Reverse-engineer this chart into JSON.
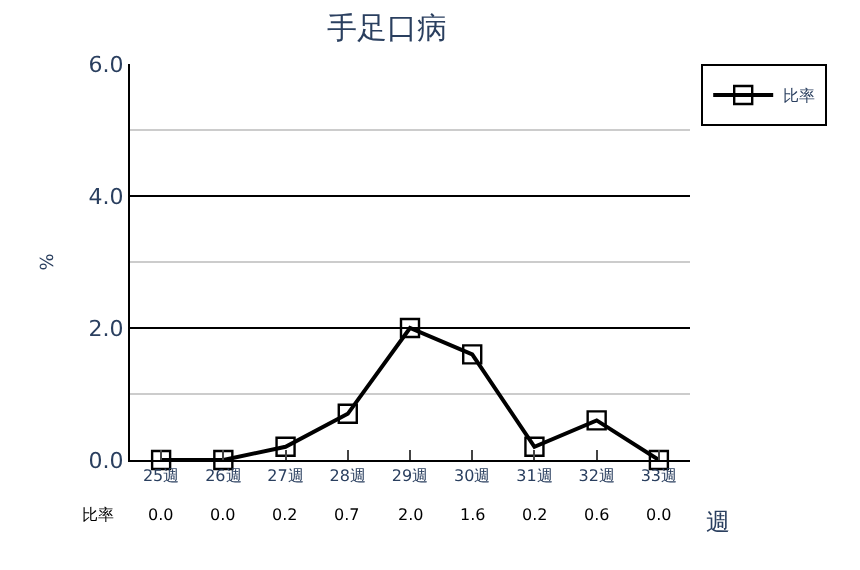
{
  "chart_data": {
    "type": "line",
    "title": "手足口病",
    "xlabel": "週",
    "ylabel": "%",
    "categories": [
      "25週",
      "26週",
      "27週",
      "28週",
      "29週",
      "30週",
      "31週",
      "32週",
      "33週"
    ],
    "series": [
      {
        "name": "比率",
        "color": "#000000",
        "values": [
          0.0,
          0.0,
          0.2,
          0.7,
          2.0,
          1.6,
          0.2,
          0.6,
          0.0
        ],
        "value_labels": [
          "0.0",
          "0.0",
          "0.2",
          "0.7",
          "2.0",
          "1.6",
          "0.2",
          "0.6",
          "0.0"
        ]
      }
    ],
    "ylim": [
      0,
      6
    ],
    "yticks": [
      {
        "value": 0,
        "label": "0.0"
      },
      {
        "value": 2,
        "label": "2.0"
      },
      {
        "value": 4,
        "label": "4.0"
      },
      {
        "value": 6,
        "label": "6.0"
      }
    ],
    "grid": "y",
    "legend": "top right",
    "marker": "square",
    "line_style": "solid"
  }
}
